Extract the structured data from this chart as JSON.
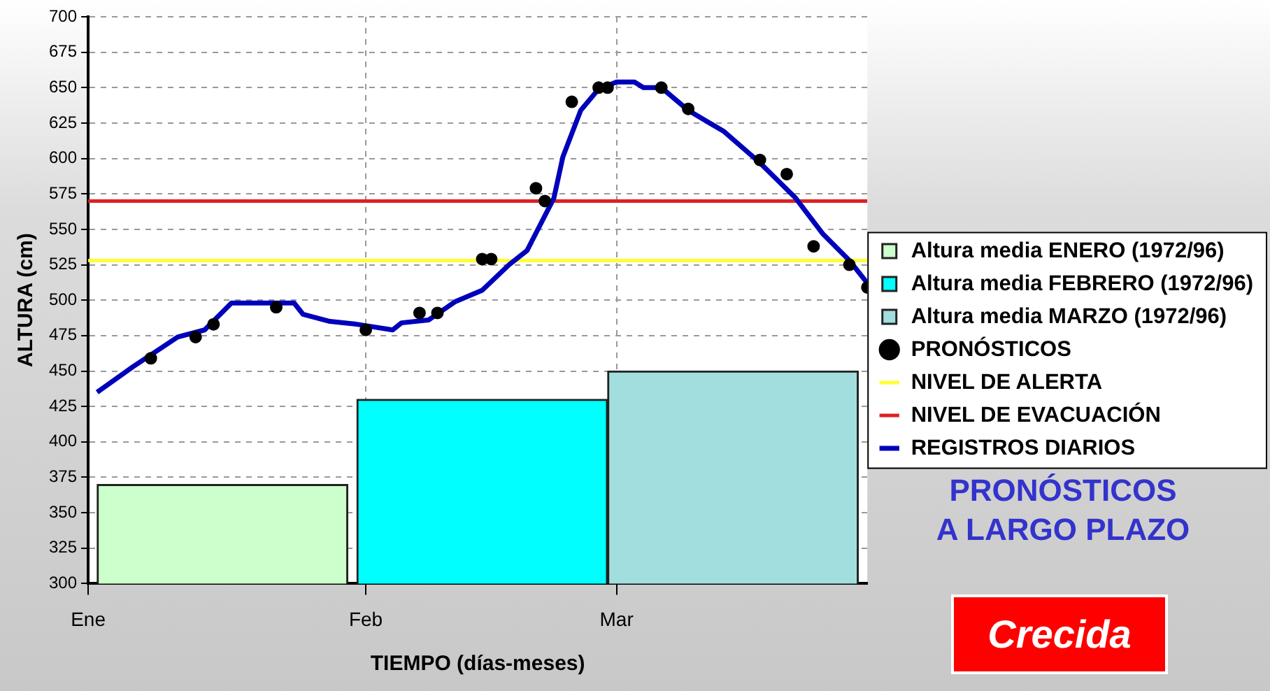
{
  "chart_data": {
    "type": "line",
    "xlabel": "TIEMPO (días-meses)",
    "ylabel": "ALTURA (cm)",
    "xlim": [
      "--01-01",
      "--03-29"
    ],
    "xticks": [
      {
        "value": "--01-01",
        "label": "Ene"
      },
      {
        "value": "--02-01",
        "label": "Feb"
      },
      {
        "value": "--03-01",
        "label": "Mar"
      }
    ],
    "ylim": [
      300,
      700
    ],
    "yticks": [
      300,
      325,
      350,
      375,
      400,
      425,
      450,
      475,
      500,
      525,
      550,
      575,
      600,
      625,
      650,
      675,
      700
    ],
    "grid": true,
    "legend": "right",
    "line_style": "solid",
    "marker": "none",
    "series": [
      {
        "name": "Altura media ENERO (1972/96)",
        "type": "bar",
        "color": "#ccffcc",
        "x": [
          "--01-16"
        ],
        "values": [
          370
        ]
      },
      {
        "name": "Altura media FEBRERO (1972/96)",
        "type": "bar",
        "color": "#00ffff",
        "x": [
          "--02-14"
        ],
        "values": [
          430
        ]
      },
      {
        "name": "Altura media MARZO (1972/96)",
        "type": "bar",
        "color": "#a3dede",
        "x": [
          "--03-14"
        ],
        "values": [
          450
        ]
      },
      {
        "name": "PRONÓSTICOS",
        "type": "scatter",
        "marker": "circle",
        "color": "#000000",
        "x": [
          "--01-08",
          "--01-13",
          "--01-15",
          "--01-22",
          "--02-01",
          "--02-07",
          "--02-09",
          "--02-14",
          "--02-15",
          "--02-20",
          "--02-21",
          "--02-24",
          "--02-27",
          "--02-28",
          "--03-06",
          "--03-09",
          "--03-17",
          "--03-20",
          "--03-23",
          "--03-27",
          "--03-29"
        ],
        "values": [
          459,
          474,
          483,
          495,
          479,
          491,
          491,
          529,
          529,
          579,
          570,
          640,
          650,
          650,
          650,
          635,
          599,
          589,
          538,
          525,
          509
        ]
      },
      {
        "name": "REGISTROS DIARIOS",
        "color": "#0000bb",
        "x": [
          "--01-02",
          "--01-06",
          "--01-11",
          "--01-14",
          "--01-17",
          "--01-24",
          "--01-25",
          "--01-28",
          "--01-31",
          "--02-04",
          "--02-05",
          "--02-08",
          "--02-11",
          "--02-14",
          "--02-17",
          "--02-19",
          "--02-22",
          "--02-23",
          "--02-25",
          "--02-27",
          "--03-01",
          "--03-03",
          "--03-04",
          "--03-06",
          "--03-09",
          "--03-13",
          "--03-17",
          "--03-21",
          "--03-24",
          "--03-27",
          "--03-29"
        ],
        "values": [
          435,
          453,
          474,
          479,
          498,
          498,
          490,
          485,
          483,
          479,
          484,
          486,
          499,
          507,
          525,
          535,
          572,
          601,
          634,
          649,
          654,
          654,
          650,
          650,
          634,
          619,
          597,
          572,
          547,
          528,
          512
        ]
      }
    ],
    "ref_lines": [
      {
        "axis": "y",
        "value": 528,
        "label": "NIVEL DE ALERTA",
        "color": "#ffff33"
      },
      {
        "axis": "y",
        "value": 570,
        "label": "NIVEL DE EVACUACIÓN",
        "color": "#dd2222"
      }
    ],
    "annotations": [
      "PRONÓSTICOS\nA LARGO PLAZO",
      "Crecida"
    ]
  }
}
